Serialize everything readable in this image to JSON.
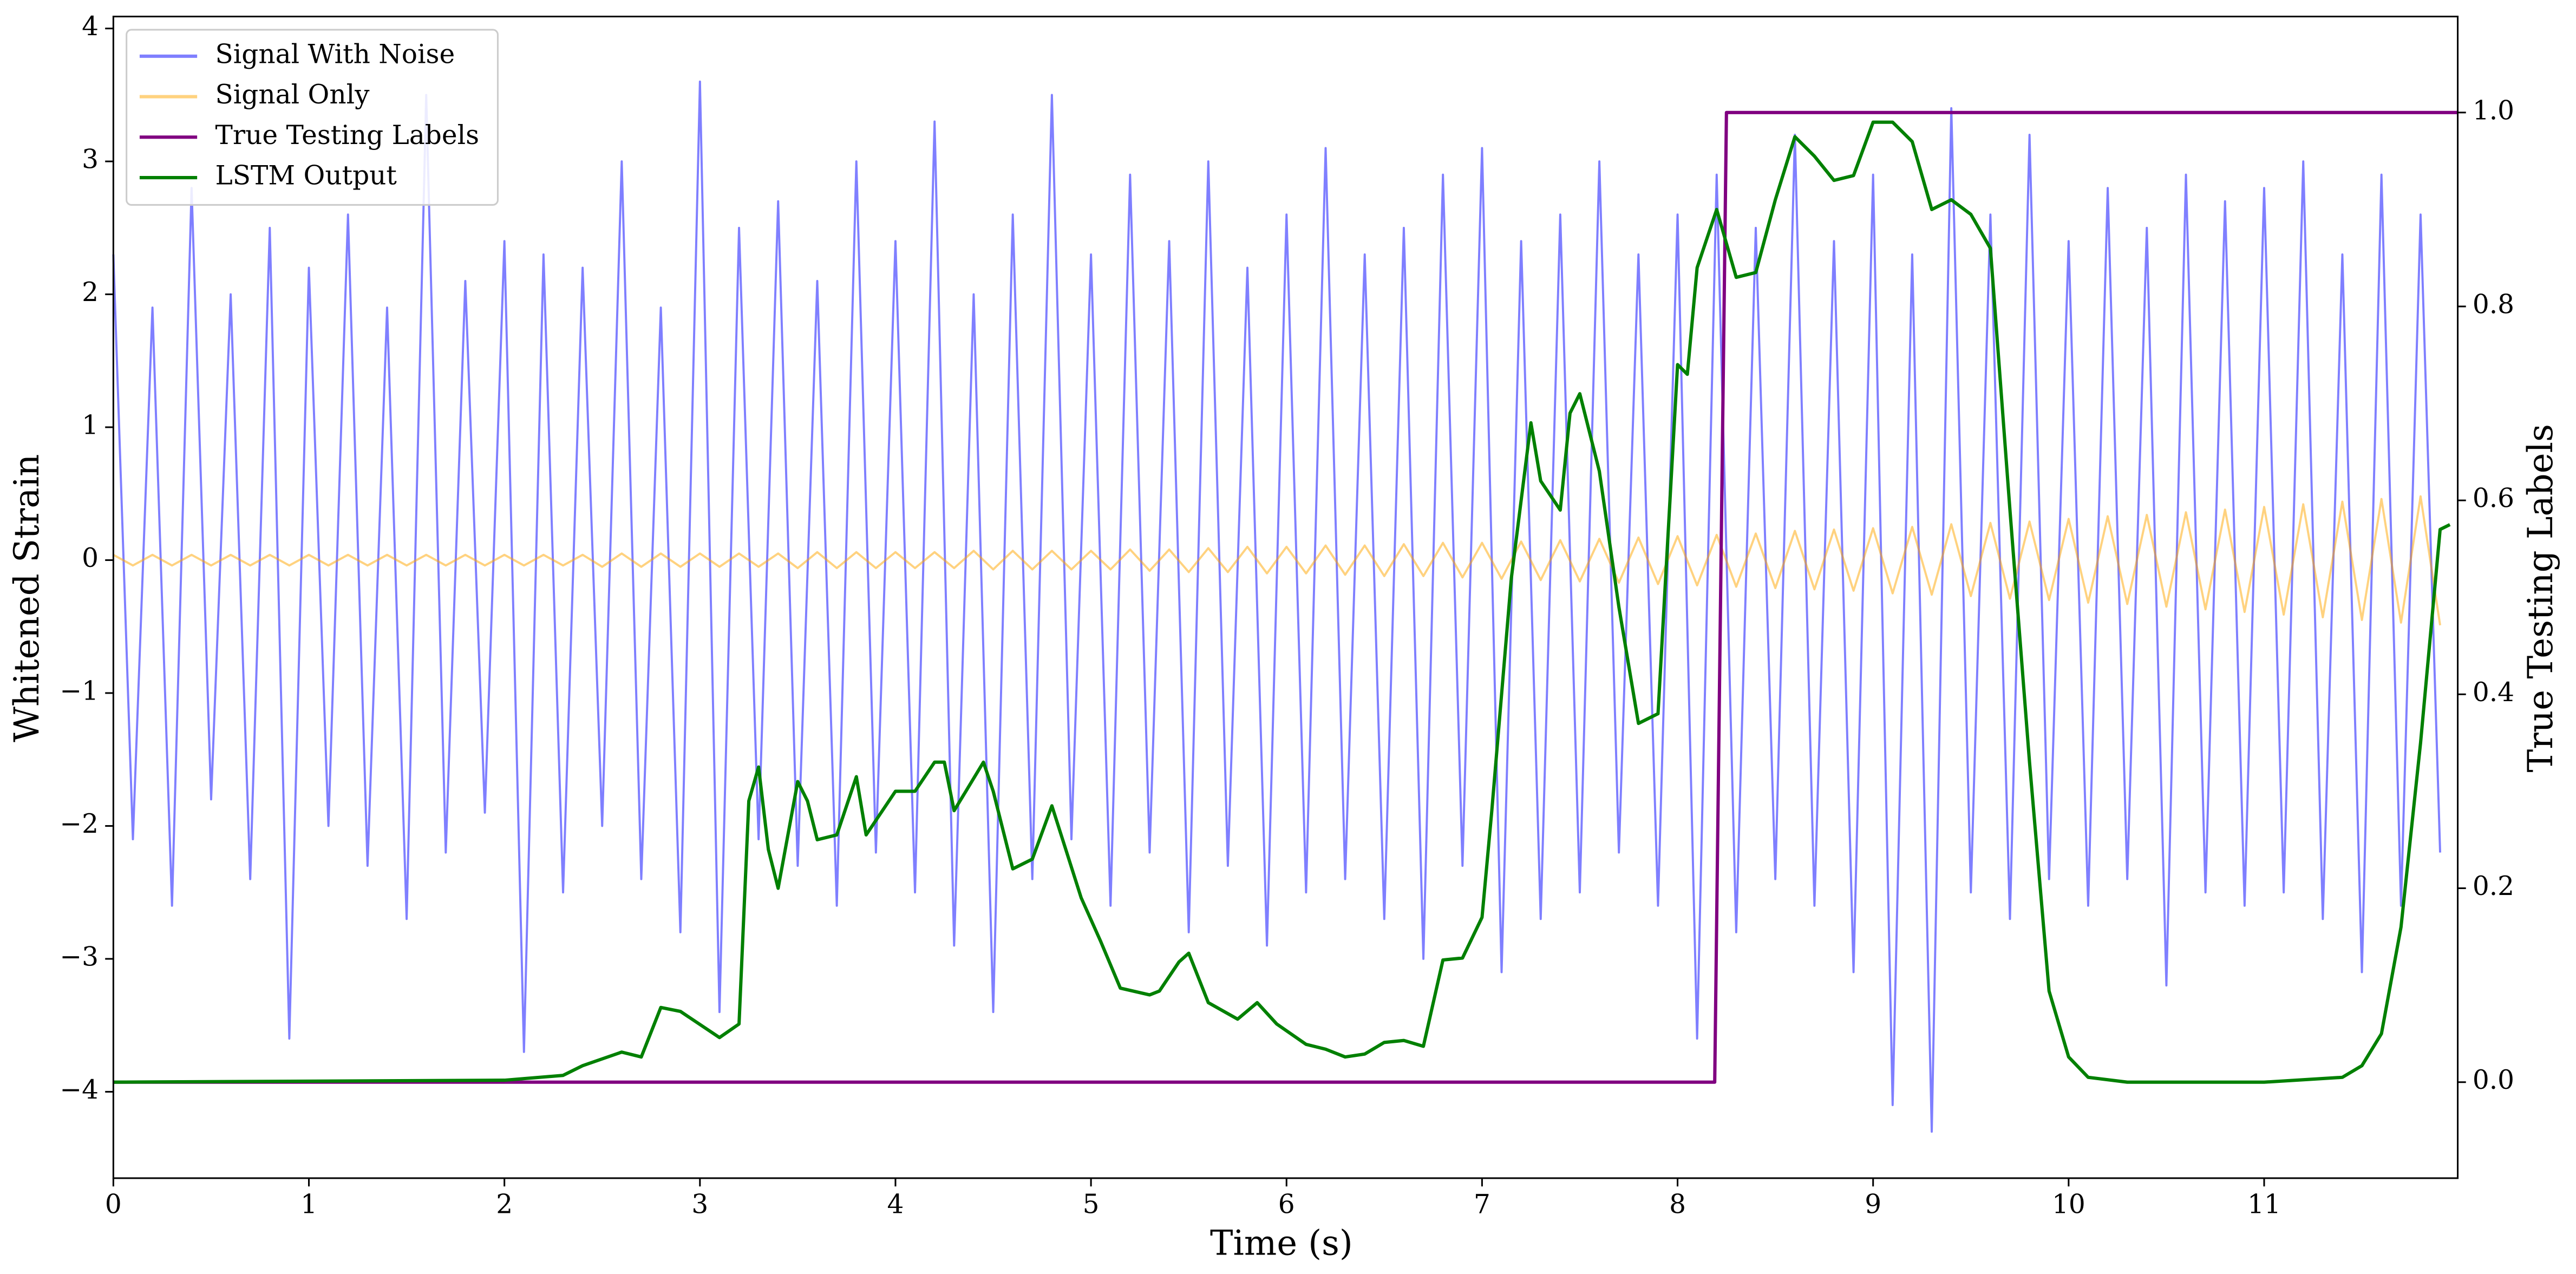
{
  "chart_data": {
    "type": "line",
    "x_label": "Time (s)",
    "y_label": "Whitened Strain",
    "y2_label": "True Testing Labels",
    "xlim": [
      0,
      11.99
    ],
    "xticks": [
      0,
      1,
      2,
      3,
      4,
      5,
      6,
      7,
      8,
      9,
      10,
      11
    ],
    "ylim": [
      -4.65,
      4.09
    ],
    "yticks": [
      {
        "value": -4,
        "label": "−4"
      },
      {
        "value": -3,
        "label": "−3"
      },
      {
        "value": -2,
        "label": "−2"
      },
      {
        "value": -1,
        "label": "−1"
      },
      0,
      1,
      2,
      3,
      4
    ],
    "y2lim": [
      -0.099,
      1.099
    ],
    "y2ticks": [
      {
        "value": 0,
        "label": "0.0"
      },
      {
        "value": 0.2,
        "label": "0.2"
      },
      {
        "value": 0.4,
        "label": "0.4"
      },
      {
        "value": 0.6,
        "label": "0.6"
      },
      {
        "value": 0.8,
        "label": "0.8"
      },
      {
        "value": 1,
        "label": "1.0"
      }
    ],
    "legend": "upper left",
    "x": [
      0,
      0.1,
      0.2,
      0.3,
      0.4,
      0.5,
      0.6,
      0.7,
      0.8,
      0.9,
      1,
      1.1,
      1.2,
      1.3,
      1.4,
      1.5,
      1.6,
      1.7,
      1.8,
      1.9,
      2,
      2.1,
      2.2,
      2.3,
      2.4,
      2.5,
      2.6,
      2.7,
      2.8,
      2.9,
      3,
      3.1,
      3.2,
      3.3,
      3.4,
      3.5,
      3.6,
      3.7,
      3.8,
      3.9,
      4,
      4.1,
      4.2,
      4.3,
      4.4,
      4.5,
      4.6,
      4.7,
      4.8,
      4.9,
      5,
      5.1,
      5.2,
      5.3,
      5.4,
      5.5,
      5.6,
      5.7,
      5.8,
      5.9,
      6,
      6.1,
      6.2,
      6.3,
      6.4,
      6.5,
      6.6,
      6.7,
      6.8,
      6.9,
      7,
      7.1,
      7.2,
      7.3,
      7.4,
      7.5,
      7.6,
      7.7,
      7.8,
      7.9,
      8,
      8.1,
      8.2,
      8.3,
      8.4,
      8.5,
      8.6,
      8.7,
      8.8,
      8.9,
      9,
      9.1,
      9.2,
      9.3,
      9.4,
      9.5,
      9.6,
      9.7,
      9.8,
      9.9,
      10,
      10.1,
      10.2,
      10.3,
      10.4,
      10.5,
      10.6,
      10.7,
      10.8,
      10.9,
      11,
      11.1,
      11.2,
      11.3,
      11.4,
      11.5,
      11.6,
      11.7,
      11.8,
      11.9
    ],
    "series": [
      {
        "name": "Signal With Noise",
        "color": "#0000ff",
        "values": [
          2.3,
          -2.1,
          1.9,
          -2.6,
          2.8,
          -1.8,
          2.0,
          -2.4,
          2.5,
          -3.6,
          2.2,
          -2.0,
          2.6,
          -2.3,
          1.9,
          -2.7,
          3.5,
          -2.2,
          2.1,
          -1.9,
          2.4,
          -3.7,
          2.3,
          -2.5,
          2.2,
          -2.0,
          3.0,
          -2.4,
          1.9,
          -2.8,
          3.6,
          -3.4,
          2.5,
          -2.1,
          2.7,
          -2.3,
          2.1,
          -2.6,
          3.0,
          -2.2,
          2.4,
          -2.5,
          3.3,
          -2.9,
          2.0,
          -3.4,
          2.6,
          -2.4,
          3.5,
          -2.1,
          2.3,
          -2.6,
          2.9,
          -2.2,
          2.4,
          -2.8,
          3.0,
          -2.3,
          2.2,
          -2.9,
          2.6,
          -2.5,
          3.1,
          -2.4,
          2.3,
          -2.7,
          2.5,
          -3.0,
          2.9,
          -2.3,
          3.1,
          -3.1,
          2.4,
          -2.7,
          2.6,
          -2.5,
          3.0,
          -2.2,
          2.3,
          -2.6,
          2.6,
          -3.6,
          2.9,
          -2.8,
          2.5,
          -2.4,
          3.2,
          -2.6,
          2.4,
          -3.1,
          2.9,
          -4.1,
          2.3,
          -4.3,
          3.4,
          -2.5,
          2.6,
          -2.7,
          3.2,
          -2.4,
          2.4,
          -2.6,
          2.8,
          -2.4,
          2.5,
          -3.2,
          2.9,
          -2.5,
          2.7,
          -2.6,
          2.8,
          -2.5,
          3.0,
          -2.7,
          2.3,
          -3.1,
          2.9,
          -2.6,
          2.6,
          -2.2
        ]
      },
      {
        "name": "Signal Only",
        "color": "#ffa500",
        "values": [
          0.04,
          -0.04,
          0.04,
          -0.04,
          0.04,
          -0.04,
          0.04,
          -0.04,
          0.04,
          -0.04,
          0.04,
          -0.04,
          0.04,
          -0.04,
          0.04,
          -0.04,
          0.04,
          -0.04,
          0.04,
          -0.04,
          0.04,
          -0.04,
          0.04,
          -0.04,
          0.04,
          -0.05,
          0.05,
          -0.05,
          0.05,
          -0.05,
          0.05,
          -0.05,
          0.05,
          -0.05,
          0.05,
          -0.06,
          0.06,
          -0.06,
          0.06,
          -0.06,
          0.06,
          -0.06,
          0.06,
          -0.06,
          0.07,
          -0.07,
          0.07,
          -0.07,
          0.07,
          -0.07,
          0.07,
          -0.07,
          0.08,
          -0.08,
          0.08,
          -0.09,
          0.09,
          -0.09,
          0.1,
          -0.1,
          0.1,
          -0.1,
          0.11,
          -0.11,
          0.11,
          -0.12,
          0.12,
          -0.12,
          0.13,
          -0.13,
          0.13,
          -0.14,
          0.14,
          -0.15,
          0.15,
          -0.16,
          0.16,
          -0.17,
          0.17,
          -0.18,
          0.18,
          -0.19,
          0.19,
          -0.2,
          0.2,
          -0.21,
          0.22,
          -0.22,
          0.23,
          -0.23,
          0.24,
          -0.25,
          0.25,
          -0.26,
          0.27,
          -0.27,
          0.28,
          -0.29,
          0.29,
          -0.3,
          0.31,
          -0.32,
          0.33,
          -0.33,
          0.34,
          -0.35,
          0.36,
          -0.37,
          0.38,
          -0.39,
          0.4,
          -0.41,
          0.42,
          -0.43,
          0.44,
          -0.45,
          0.46,
          -0.47,
          0.48,
          -0.49
        ]
      },
      {
        "name": "True Testing Labels",
        "color": "#800080",
        "axis": "y2",
        "x": [
          0,
          8.19,
          8.25,
          11.99
        ],
        "values": [
          0,
          0,
          1,
          1
        ]
      },
      {
        "name": "LSTM Output",
        "color": "#008000",
        "axis": "y2",
        "x": [
          0,
          2.0,
          2.3,
          2.4,
          2.6,
          2.7,
          2.8,
          2.9,
          3.1,
          3.2,
          3.25,
          3.3,
          3.35,
          3.4,
          3.5,
          3.55,
          3.6,
          3.7,
          3.8,
          3.85,
          4.0,
          4.1,
          4.2,
          4.25,
          4.3,
          4.45,
          4.5,
          4.6,
          4.7,
          4.8,
          4.95,
          5.05,
          5.15,
          5.3,
          5.35,
          5.45,
          5.5,
          5.6,
          5.75,
          5.85,
          5.95,
          6.1,
          6.2,
          6.3,
          6.4,
          6.5,
          6.6,
          6.7,
          6.8,
          6.9,
          7.0,
          7.05,
          7.15,
          7.25,
          7.3,
          7.4,
          7.45,
          7.5,
          7.6,
          7.7,
          7.8,
          7.9,
          8.0,
          8.05,
          8.1,
          8.2,
          8.3,
          8.4,
          8.5,
          8.6,
          8.7,
          8.8,
          8.9,
          9.0,
          9.1,
          9.2,
          9.3,
          9.4,
          9.5,
          9.6,
          9.7,
          9.8,
          9.9,
          10.0,
          10.1,
          10.3,
          11.0,
          11.4,
          11.5,
          11.6,
          11.7,
          11.8,
          11.9,
          11.95
        ],
        "values": [
          0,
          0.002,
          0.007,
          0.017,
          0.031,
          0.026,
          0.077,
          0.073,
          0.046,
          0.06,
          0.29,
          0.325,
          0.24,
          0.2,
          0.31,
          0.29,
          0.25,
          0.255,
          0.315,
          0.255,
          0.3,
          0.3,
          0.33,
          0.33,
          0.28,
          0.33,
          0.3,
          0.22,
          0.23,
          0.285,
          0.19,
          0.145,
          0.097,
          0.09,
          0.094,
          0.124,
          0.133,
          0.082,
          0.065,
          0.082,
          0.06,
          0.039,
          0.034,
          0.026,
          0.029,
          0.041,
          0.043,
          0.037,
          0.126,
          0.128,
          0.17,
          0.28,
          0.52,
          0.68,
          0.62,
          0.59,
          0.69,
          0.71,
          0.63,
          0.49,
          0.37,
          0.38,
          0.74,
          0.73,
          0.84,
          0.9,
          0.83,
          0.835,
          0.91,
          0.975,
          0.955,
          0.93,
          0.935,
          0.99,
          0.99,
          0.97,
          0.9,
          0.91,
          0.895,
          0.86,
          0.59,
          0.33,
          0.094,
          0.026,
          0.005,
          0,
          0,
          0.005,
          0.017,
          0.05,
          0.16,
          0.35,
          0.57,
          0.575
        ]
      }
    ]
  }
}
